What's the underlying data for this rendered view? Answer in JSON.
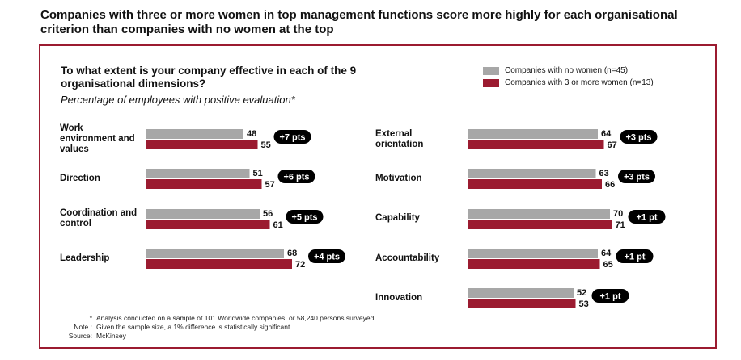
{
  "headline": "Companies with three or more women in top management functions score more highly for each organisational criterion than companies with no women at the top",
  "question": "To what extent is your company effective in each of the 9 organisational dimensions?",
  "subtitle": "Percentage of employees with positive evaluation*",
  "colors": {
    "no_women": "#a7a7a7",
    "women": "#9b1b30",
    "frame": "#9b1b30",
    "badge": "#000000"
  },
  "legend": [
    {
      "label": "Companies with no women (n=45)",
      "color": "#a7a7a7"
    },
    {
      "label": "Companies with 3 or more women (n=13)",
      "color": "#9b1b30"
    }
  ],
  "chart_data": {
    "type": "bar",
    "orientation": "horizontal",
    "series": [
      {
        "name": "Companies with no women (n=45)",
        "values": [
          48,
          51,
          56,
          68,
          64,
          63,
          70,
          64,
          52
        ]
      },
      {
        "name": "Companies with 3 or more women (n=13)",
        "values": [
          55,
          57,
          61,
          72,
          67,
          66,
          71,
          65,
          53
        ]
      }
    ],
    "categories": [
      "Work environment and values",
      "Direction",
      "Coordination and control",
      "Leadership",
      "External orientation",
      "Motivation",
      "Capability",
      "Accountability",
      "Innovation"
    ],
    "differences": [
      "+7 pts",
      "+6 pts",
      "+5 pts",
      "+4 pts",
      "+3 pts",
      "+3 pts",
      "+1 pt",
      "+1 pt",
      "+1 pt"
    ],
    "legend_position": "top-right",
    "grid": false
  },
  "notes": [
    {
      "key": "*",
      "text": "Analysis conducted on a sample of 101 Worldwide companies, or 58,240 persons surveyed"
    },
    {
      "key": "Note :",
      "text": "Given the sample size, a 1% difference is statistically significant"
    },
    {
      "key": "Source:",
      "text": "McKinsey"
    }
  ]
}
